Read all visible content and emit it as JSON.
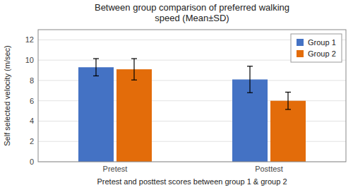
{
  "chart_data": {
    "type": "bar",
    "title": "Between group comparison of preferred walking\nspeed (Mean±SD)",
    "xlabel": "Pretest and posttest scores between group 1 & group 2",
    "ylabel": "Self selected velocity (m/sec)",
    "categories": [
      "Pretest",
      "Posttest"
    ],
    "series": [
      {
        "name": "Group 1",
        "color": "#4472C4",
        "values": [
          9.3,
          8.1
        ],
        "errors": [
          0.85,
          1.3
        ]
      },
      {
        "name": "Group 2",
        "color": "#E36C0A",
        "values": [
          9.1,
          6.0
        ],
        "errors": [
          1.05,
          0.85
        ]
      }
    ],
    "ylim": [
      0,
      13
    ],
    "yticks": [
      0,
      2,
      4,
      6,
      8,
      10,
      12
    ],
    "grid": true,
    "legend": "upper right"
  }
}
